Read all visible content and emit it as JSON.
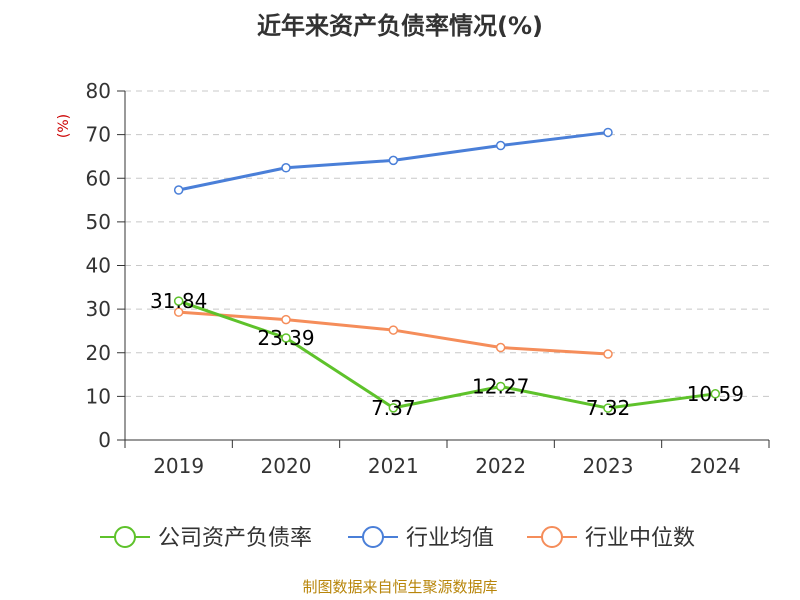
{
  "chart_data": {
    "type": "line",
    "title": "近年来资产负债率情况(%)",
    "ylabel": "(%)",
    "xlabel": "",
    "ylim": [
      0,
      80
    ],
    "yticks": [
      0,
      10,
      20,
      30,
      40,
      50,
      60,
      70,
      80
    ],
    "categories": [
      "2019",
      "2020",
      "2021",
      "2022",
      "2023",
      "2024"
    ],
    "grid": true,
    "legend_position": "bottom",
    "series": [
      {
        "name": "公司资产负债率",
        "color": "#5ec22b",
        "values": [
          31.84,
          23.39,
          7.37,
          12.27,
          7.32,
          10.59
        ],
        "value_labels": [
          "31.84",
          "23.39",
          "7.37",
          "12.27",
          "7.32",
          "10.59"
        ],
        "show_labels": true
      },
      {
        "name": "行业均值",
        "color": "#4a7fd8",
        "values": [
          57.3,
          62.4,
          64.1,
          67.5,
          70.5,
          null
        ],
        "show_labels": false
      },
      {
        "name": "行业中位数",
        "color": "#f58d5a",
        "values": [
          29.3,
          27.6,
          25.2,
          21.2,
          19.7,
          null
        ],
        "show_labels": false
      }
    ]
  },
  "source_text": "制图数据来自恒生聚源数据库"
}
